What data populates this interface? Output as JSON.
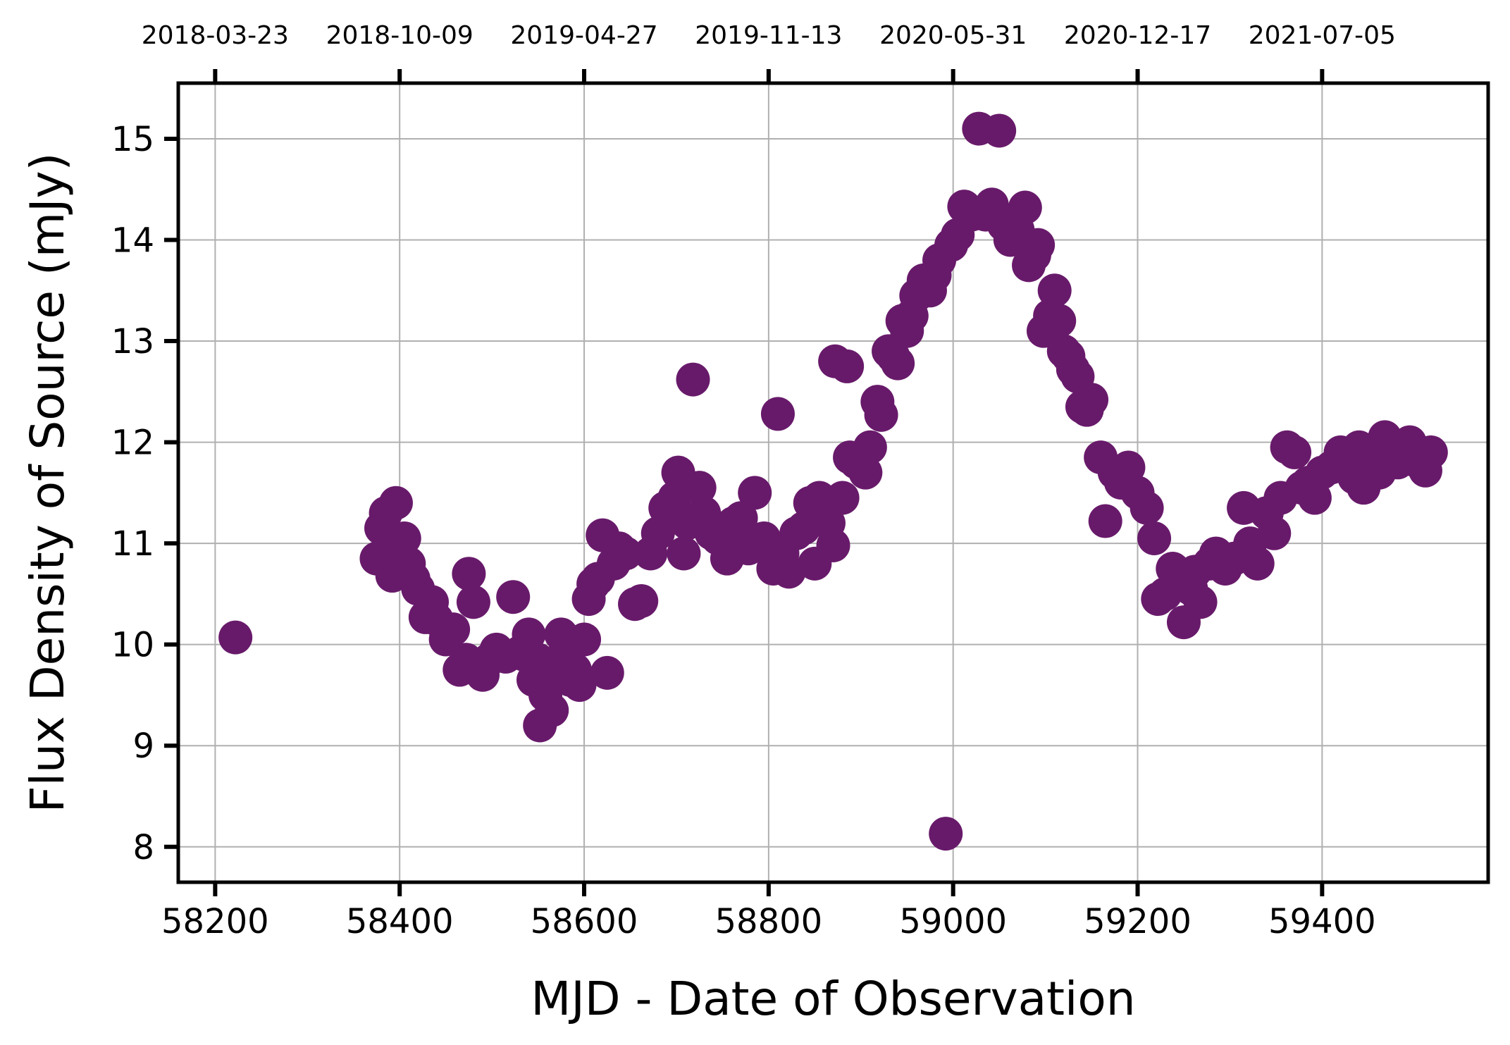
{
  "chart_data": {
    "type": "scatter",
    "xlabel": "MJD - Date of Observation",
    "ylabel": "Flux Density of Source (mJy)",
    "xlim": [
      58160,
      59580
    ],
    "ylim": [
      7.65,
      15.55
    ],
    "x_ticks": [
      58200,
      58400,
      58600,
      58800,
      59000,
      59200,
      59400
    ],
    "x_tick_labels": [
      "58200",
      "58400",
      "58600",
      "58800",
      "59000",
      "59200",
      "59400"
    ],
    "y_ticks": [
      8,
      9,
      10,
      11,
      12,
      13,
      14,
      15
    ],
    "y_tick_labels": [
      "8",
      "9",
      "10",
      "11",
      "12",
      "13",
      "14",
      "15"
    ],
    "top_ticks": [
      58200,
      58400,
      58600,
      58800,
      59000,
      59200,
      59400
    ],
    "top_tick_labels": [
      "2018-03-23",
      "2018-10-09",
      "2019-04-27",
      "2019-11-13",
      "2020-05-31",
      "2020-12-17",
      "2021-07-05"
    ],
    "grid": true,
    "marker_color": "#681a6a",
    "points": [
      [
        58222,
        10.07
      ],
      [
        58375,
        10.85
      ],
      [
        58380,
        11.15
      ],
      [
        58385,
        11.3
      ],
      [
        58390,
        11.05
      ],
      [
        58392,
        10.68
      ],
      [
        58396,
        11.4
      ],
      [
        58400,
        10.97
      ],
      [
        58405,
        11.05
      ],
      [
        58410,
        10.8
      ],
      [
        58415,
        10.65
      ],
      [
        58420,
        10.55
      ],
      [
        58428,
        10.27
      ],
      [
        58435,
        10.42
      ],
      [
        58440,
        10.25
      ],
      [
        58450,
        10.05
      ],
      [
        58458,
        10.15
      ],
      [
        58465,
        9.75
      ],
      [
        58472,
        9.85
      ],
      [
        58475,
        10.7
      ],
      [
        58480,
        10.42
      ],
      [
        58490,
        9.7
      ],
      [
        58497,
        9.85
      ],
      [
        58505,
        9.95
      ],
      [
        58515,
        9.88
      ],
      [
        58523,
        10.47
      ],
      [
        58530,
        9.92
      ],
      [
        58535,
        9.9
      ],
      [
        58540,
        10.1
      ],
      [
        58545,
        9.65
      ],
      [
        58550,
        9.85
      ],
      [
        58552,
        9.2
      ],
      [
        58558,
        9.5
      ],
      [
        58565,
        9.35
      ],
      [
        58570,
        9.78
      ],
      [
        58575,
        10.1
      ],
      [
        58580,
        9.95
      ],
      [
        58585,
        9.65
      ],
      [
        58590,
        9.75
      ],
      [
        58595,
        9.6
      ],
      [
        58600,
        10.05
      ],
      [
        58605,
        10.45
      ],
      [
        58610,
        10.6
      ],
      [
        58615,
        10.65
      ],
      [
        58620,
        11.08
      ],
      [
        58625,
        9.72
      ],
      [
        58632,
        10.8
      ],
      [
        58638,
        10.95
      ],
      [
        58645,
        10.9
      ],
      [
        58655,
        10.4
      ],
      [
        58662,
        10.43
      ],
      [
        58672,
        10.9
      ],
      [
        58680,
        11.1
      ],
      [
        58688,
        11.35
      ],
      [
        58698,
        11.45
      ],
      [
        58702,
        11.7
      ],
      [
        58708,
        10.9
      ],
      [
        58712,
        11.2
      ],
      [
        58718,
        12.62
      ],
      [
        58725,
        11.55
      ],
      [
        58730,
        11.3
      ],
      [
        58738,
        11.1
      ],
      [
        58745,
        11.05
      ],
      [
        58750,
        11.15
      ],
      [
        58755,
        10.85
      ],
      [
        58762,
        11.2
      ],
      [
        58770,
        11.25
      ],
      [
        58778,
        10.95
      ],
      [
        58785,
        11.5
      ],
      [
        58795,
        11.05
      ],
      [
        58805,
        10.75
      ],
      [
        58810,
        12.28
      ],
      [
        58815,
        10.9
      ],
      [
        58822,
        10.72
      ],
      [
        58830,
        11.1
      ],
      [
        58838,
        11.15
      ],
      [
        58845,
        11.4
      ],
      [
        58850,
        10.8
      ],
      [
        58855,
        11.45
      ],
      [
        58865,
        11.2
      ],
      [
        58870,
        10.98
      ],
      [
        58872,
        12.8
      ],
      [
        58880,
        11.45
      ],
      [
        58885,
        12.75
      ],
      [
        58888,
        11.85
      ],
      [
        58895,
        11.8
      ],
      [
        58905,
        11.7
      ],
      [
        58910,
        11.95
      ],
      [
        58918,
        12.4
      ],
      [
        58922,
        12.27
      ],
      [
        58930,
        12.9
      ],
      [
        58935,
        12.85
      ],
      [
        58940,
        12.78
      ],
      [
        58945,
        13.2
      ],
      [
        58950,
        13.1
      ],
      [
        58955,
        13.25
      ],
      [
        58960,
        13.45
      ],
      [
        58968,
        13.6
      ],
      [
        58975,
        13.5
      ],
      [
        58980,
        13.65
      ],
      [
        58985,
        13.8
      ],
      [
        58992,
        8.13
      ],
      [
        58998,
        13.95
      ],
      [
        59005,
        14.05
      ],
      [
        59012,
        14.33
      ],
      [
        59020,
        14.25
      ],
      [
        59028,
        15.1
      ],
      [
        59035,
        14.25
      ],
      [
        59042,
        14.35
      ],
      [
        59050,
        15.08
      ],
      [
        59055,
        14.15
      ],
      [
        59062,
        14.0
      ],
      [
        59070,
        14.1
      ],
      [
        59078,
        14.32
      ],
      [
        59082,
        13.75
      ],
      [
        59088,
        13.85
      ],
      [
        59092,
        13.95
      ],
      [
        59098,
        13.1
      ],
      [
        59105,
        13.25
      ],
      [
        59110,
        13.5
      ],
      [
        59115,
        13.2
      ],
      [
        59120,
        12.9
      ],
      [
        59125,
        12.85
      ],
      [
        59130,
        12.72
      ],
      [
        59135,
        12.65
      ],
      [
        59140,
        12.35
      ],
      [
        59145,
        12.32
      ],
      [
        59150,
        12.42
      ],
      [
        59160,
        11.85
      ],
      [
        59165,
        11.22
      ],
      [
        59175,
        11.7
      ],
      [
        59182,
        11.6
      ],
      [
        59190,
        11.75
      ],
      [
        59200,
        11.5
      ],
      [
        59210,
        11.35
      ],
      [
        59218,
        11.05
      ],
      [
        59222,
        10.45
      ],
      [
        59230,
        10.5
      ],
      [
        59238,
        10.75
      ],
      [
        59245,
        10.6
      ],
      [
        59250,
        10.22
      ],
      [
        59258,
        10.55
      ],
      [
        59262,
        10.72
      ],
      [
        59268,
        10.42
      ],
      [
        59278,
        10.8
      ],
      [
        59285,
        10.9
      ],
      [
        59295,
        10.75
      ],
      [
        59305,
        10.85
      ],
      [
        59315,
        11.35
      ],
      [
        59318,
        10.9
      ],
      [
        59322,
        11.0
      ],
      [
        59330,
        10.8
      ],
      [
        59340,
        11.3
      ],
      [
        59348,
        11.1
      ],
      [
        59355,
        11.45
      ],
      [
        59362,
        11.95
      ],
      [
        59370,
        11.9
      ],
      [
        59378,
        11.55
      ],
      [
        59385,
        11.6
      ],
      [
        59392,
        11.45
      ],
      [
        59400,
        11.7
      ],
      [
        59410,
        11.75
      ],
      [
        59420,
        11.9
      ],
      [
        59428,
        11.85
      ],
      [
        59435,
        11.65
      ],
      [
        59440,
        11.95
      ],
      [
        59445,
        11.55
      ],
      [
        59452,
        11.8
      ],
      [
        59458,
        11.9
      ],
      [
        59462,
        11.7
      ],
      [
        59468,
        12.05
      ],
      [
        59475,
        11.85
      ],
      [
        59482,
        11.8
      ],
      [
        59490,
        11.95
      ],
      [
        59495,
        12.0
      ],
      [
        59505,
        11.8
      ],
      [
        59512,
        11.72
      ],
      [
        59518,
        11.9
      ]
    ]
  }
}
